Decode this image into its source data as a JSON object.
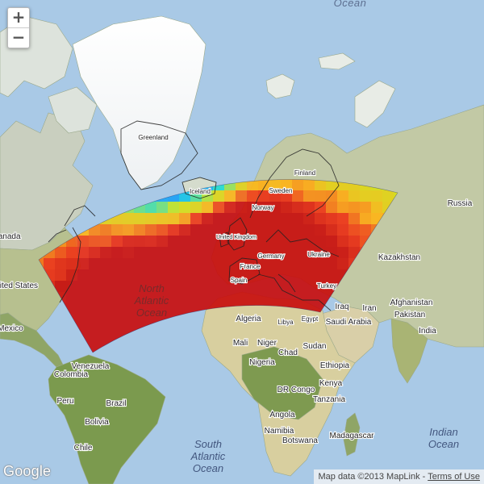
{
  "zoom": {
    "in_label": "+",
    "out_label": "−"
  },
  "attribution": {
    "map_data": "Map data ©2013 MapLink",
    "separator": " - ",
    "terms_link": "Terms of Use"
  },
  "logo": {
    "text": "Google"
  },
  "overlay": {
    "type": "heatmap",
    "colormap": [
      "#1414c8",
      "#1e8cff",
      "#14dcdc",
      "#d2e614",
      "#ffb414",
      "#f03214",
      "#c80a0a"
    ]
  },
  "labels": {
    "oceans": [
      {
        "id": "arctic",
        "lines": [
          "Ocean"
        ]
      },
      {
        "id": "north-atlantic",
        "lines": [
          "North",
          "Atlantic",
          "Ocean"
        ]
      },
      {
        "id": "south-atlantic",
        "lines": [
          "South",
          "Atlantic",
          "Ocean"
        ]
      },
      {
        "id": "indian",
        "lines": [
          "Indian",
          "Ocean"
        ]
      }
    ],
    "places": [
      "Greenland",
      "Iceland",
      "Finland",
      "Sweden",
      "Norway",
      "Russia",
      "United Kingdom",
      "Germany",
      "France",
      "Spain",
      "Ukraine",
      "Kazakhstan",
      "Turkey",
      "Iraq",
      "Iran",
      "Afghanistan",
      "Pakistan",
      "Saudi Arabia",
      "India",
      "Algeria",
      "Libya",
      "Egypt",
      "Mali",
      "Niger",
      "Chad",
      "Sudan",
      "Nigeria",
      "Ethiopia",
      "Kenya",
      "DR Congo",
      "Tanzania",
      "Angola",
      "Namibia",
      "Botswana",
      "Madagascar",
      "Canada",
      "United States",
      "Mexico",
      "Venezuela",
      "Colombia",
      "Peru",
      "Brazil",
      "Bolivia",
      "Chile"
    ]
  }
}
